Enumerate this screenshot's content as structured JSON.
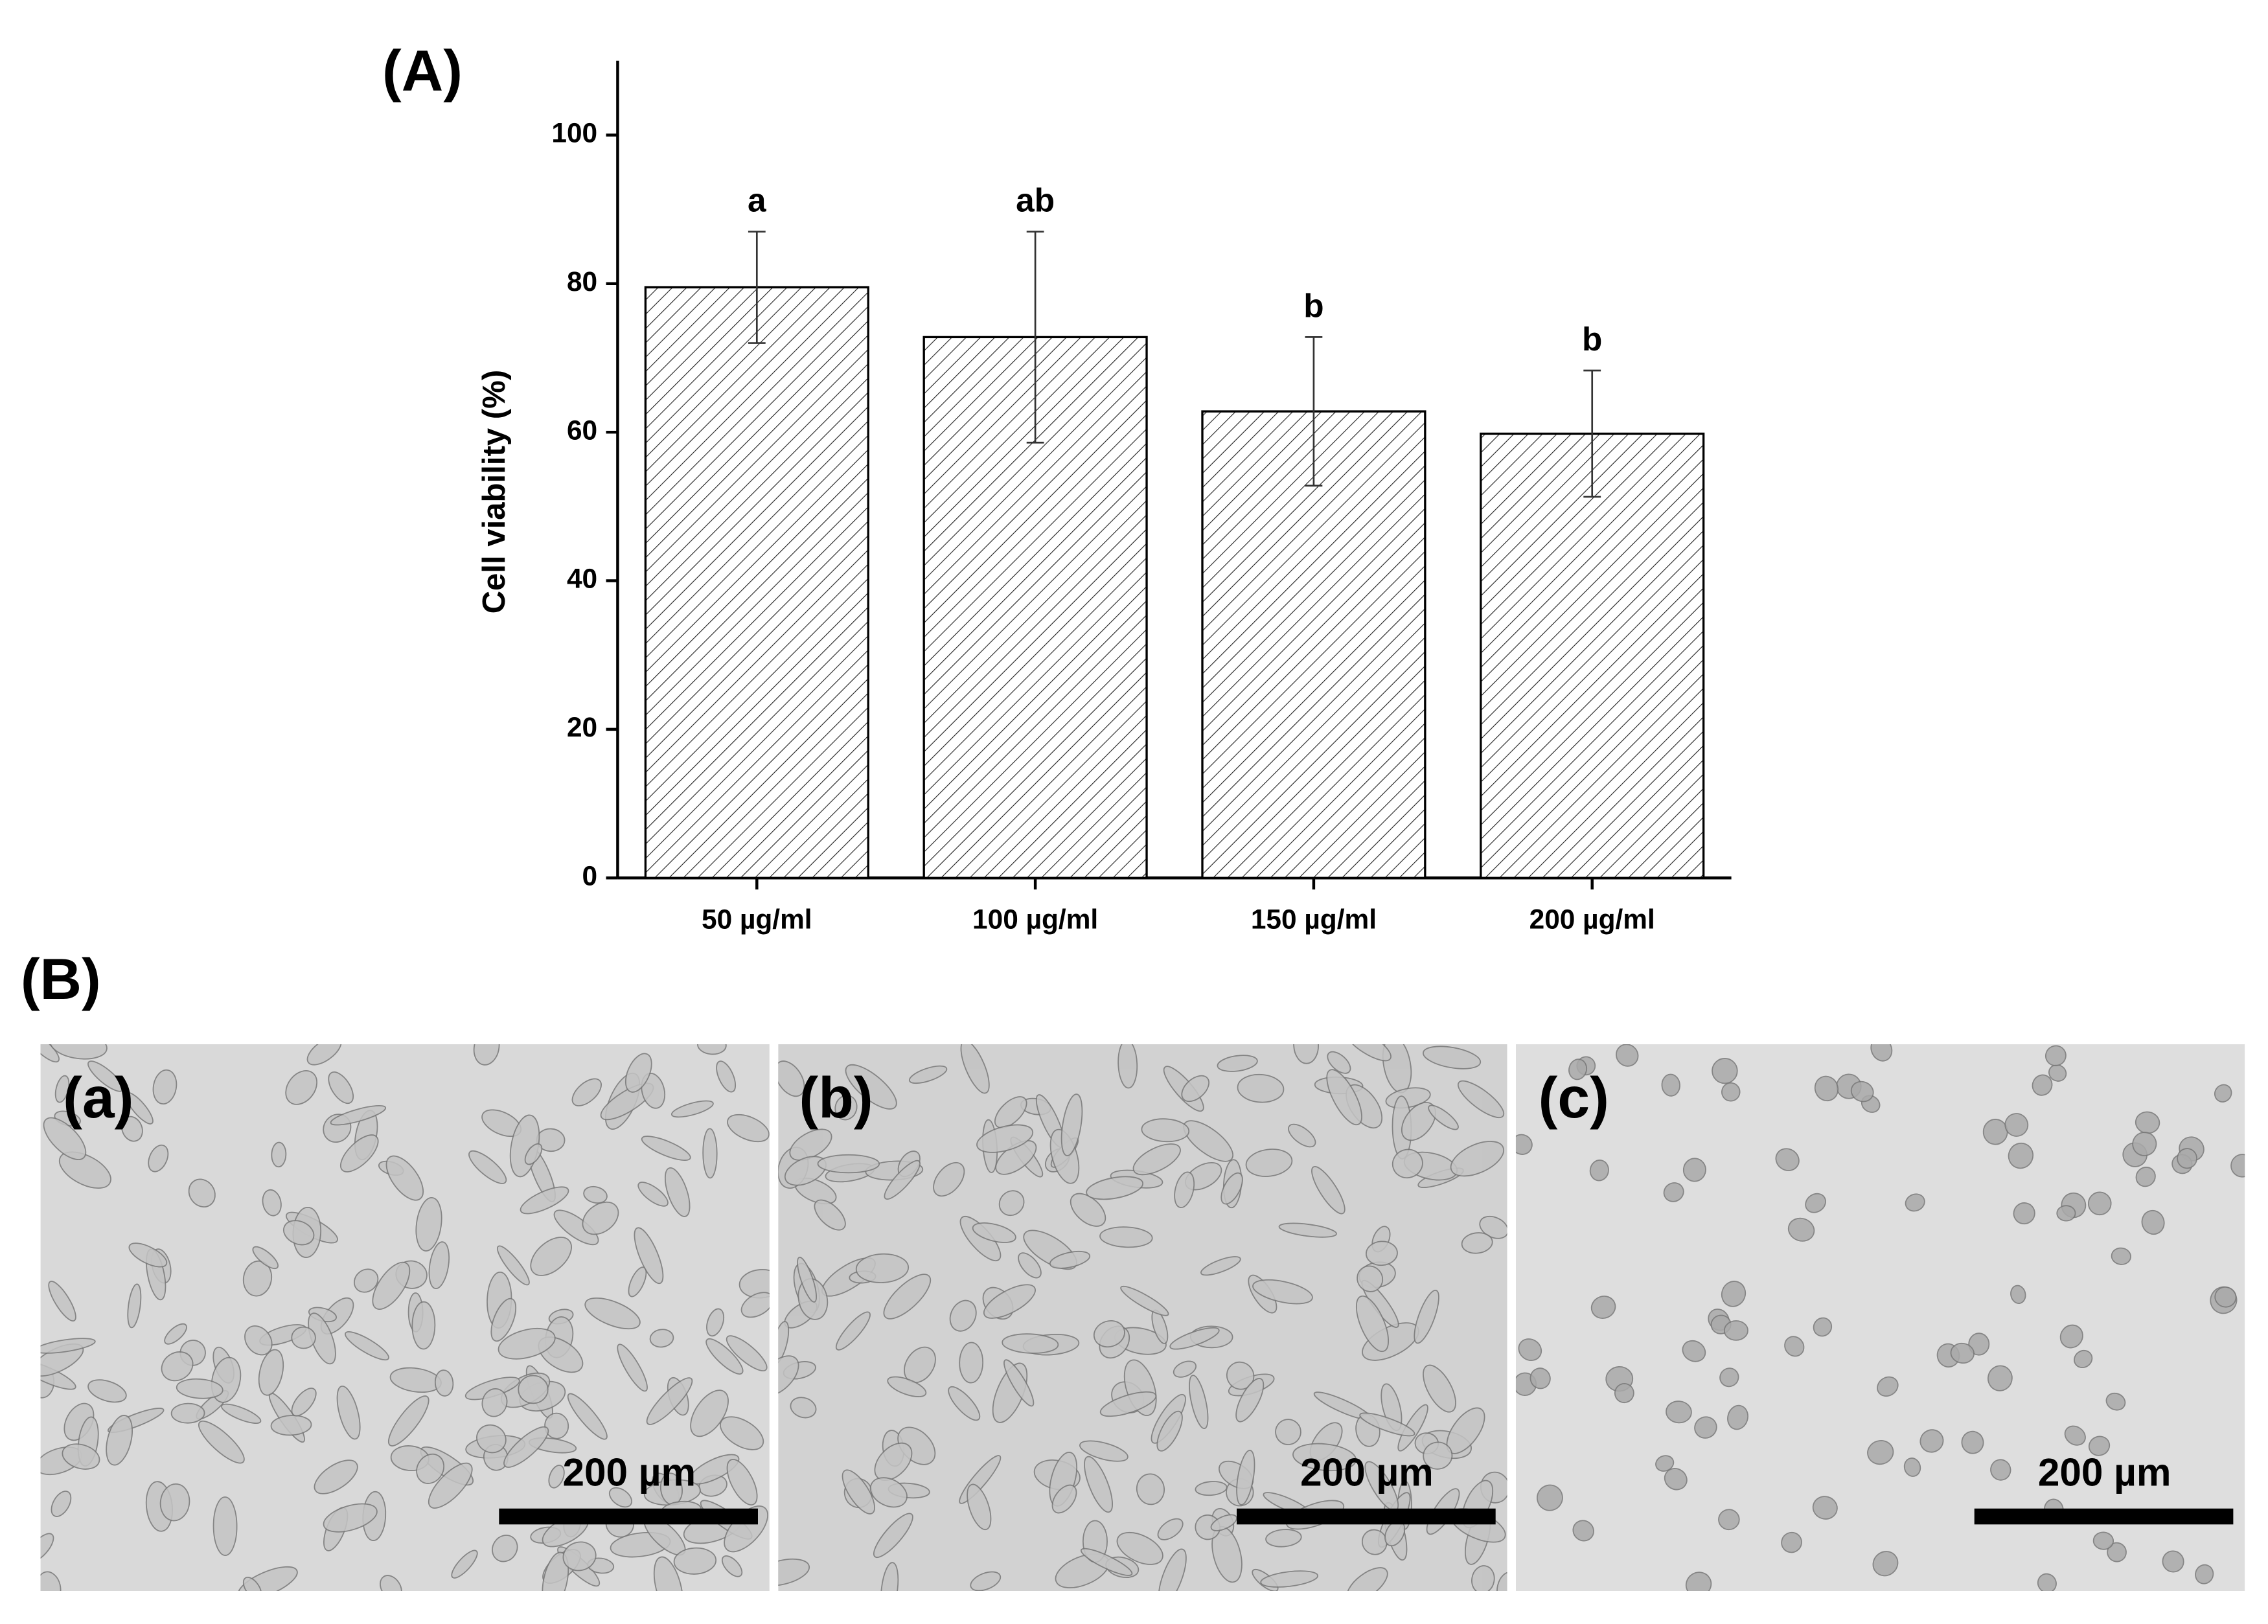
{
  "chart_data": {
    "type": "bar",
    "panel_label": "(A)",
    "y_label": "Cell viability (%)",
    "categories": [
      "50 µg/ml",
      "100 µg/ml",
      "150 µg/ml",
      "200 µg/ml"
    ],
    "values": [
      79.5,
      72.8,
      62.8,
      59.8
    ],
    "errors": [
      7.5,
      14.2,
      10,
      8.5
    ],
    "annotations": [
      "a",
      "ab",
      "b",
      "b"
    ],
    "ylim": [
      0,
      110
    ],
    "yticks": [
      0,
      20,
      40,
      60,
      80,
      100
    ],
    "color": "#ffffff",
    "hatch": "diagonal"
  },
  "panel_b": {
    "label": "(B)",
    "images": [
      {
        "label": "(a)",
        "scale_bar": "200 µm"
      },
      {
        "label": "(b)",
        "scale_bar": "200 µm"
      },
      {
        "label": "(c)",
        "scale_bar": "200 µm"
      }
    ]
  }
}
